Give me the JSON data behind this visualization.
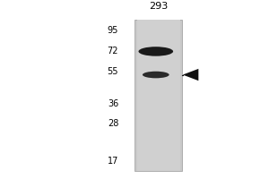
{
  "title": "293",
  "mw_markers": [
    95,
    72,
    55,
    36,
    28,
    17
  ],
  "band1_mw": 72,
  "band2_mw": 53,
  "gel_bg": "#c8c8c8",
  "lane_light": "#d0d0d0",
  "band1_color": "#1a1a1a",
  "band2_color": "#2a2a2a",
  "arrow_color": "#111111",
  "outer_bg": "#ffffff",
  "fig_width": 3.0,
  "fig_height": 2.0,
  "dpi": 100,
  "mw_log_min": 1.176,
  "mw_log_max": 2.04
}
